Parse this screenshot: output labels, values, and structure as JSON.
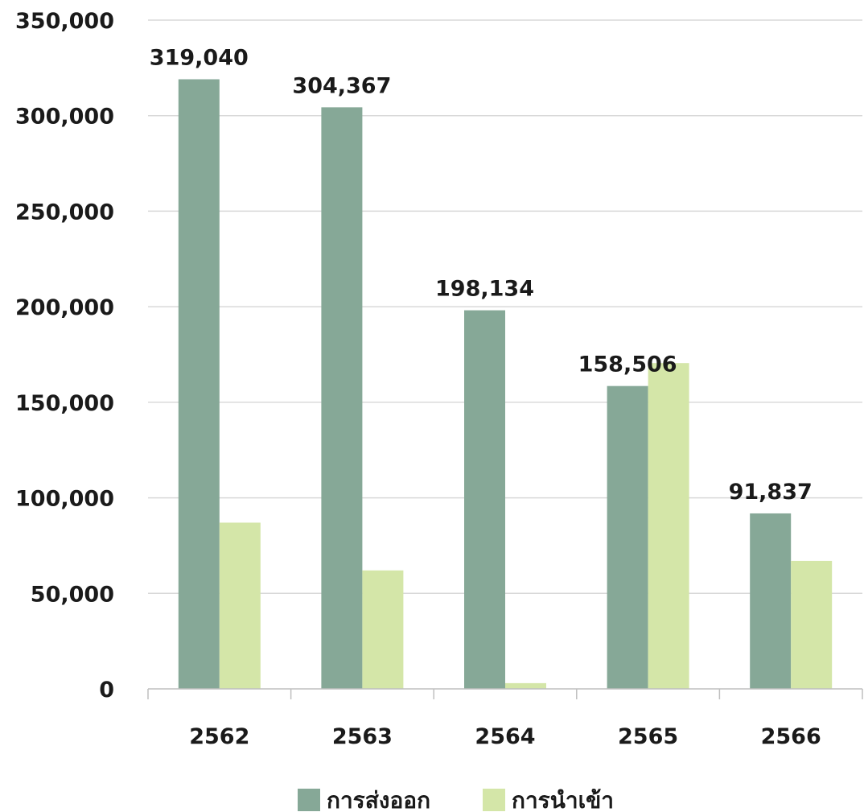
{
  "chart_data": {
    "type": "bar",
    "categories": [
      "2562",
      "2563",
      "2564",
      "2565",
      "2566"
    ],
    "series": [
      {
        "name": "การส่งออก",
        "values": [
          319040,
          304367,
          198134,
          158506,
          91837
        ],
        "color": "#86a897",
        "labels": [
          "319,040",
          "304,367",
          "198,134",
          "158,506",
          "91,837"
        ]
      },
      {
        "name": "การนำเข้า",
        "values": [
          87000,
          62000,
          3000,
          170500,
          67000
        ],
        "color": "#d4e6a8",
        "labels": [
          "",
          "",
          "",
          "",
          ""
        ]
      }
    ],
    "title": "",
    "xlabel": "",
    "ylabel": "",
    "ylim": [
      0,
      350000
    ],
    "yticks": [
      0,
      50000,
      100000,
      150000,
      200000,
      250000,
      300000,
      350000
    ],
    "ytick_labels": [
      "0",
      "50,000",
      "100,000",
      "150,000",
      "200,000",
      "250,000",
      "300,000",
      "350,000"
    ],
    "grid": true,
    "legend": "bottom"
  }
}
